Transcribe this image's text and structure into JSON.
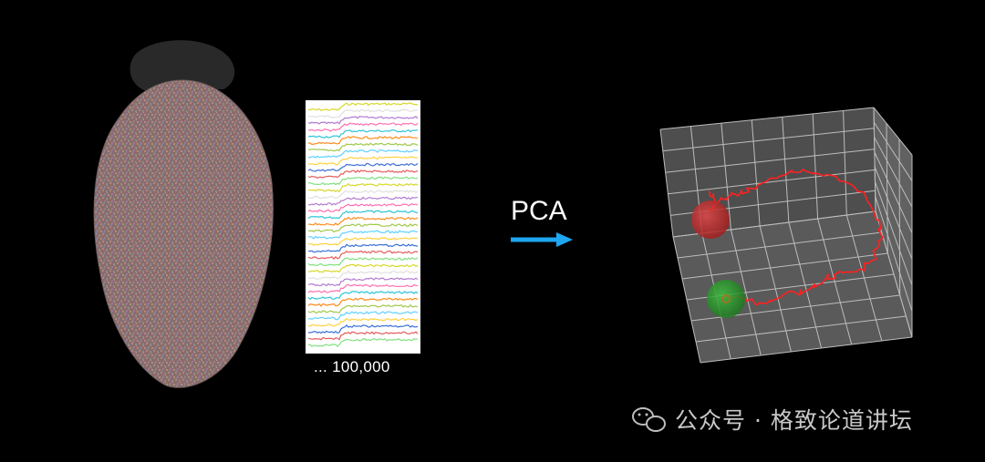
{
  "traces_panel": {
    "neuron_count_label": "... 100,000",
    "trace_colors": [
      "#d7d72a",
      "#e0e0e0",
      "#b07ad0",
      "#ff6fb0",
      "#2ec4d6",
      "#ff8c1a",
      "#a0c84a",
      "#5fd1ff",
      "#ffd23f",
      "#3a6fd8",
      "#e65b5b",
      "#7fe07f"
    ]
  },
  "arrow": {
    "label": "PCA",
    "color": "#1ea6f0"
  },
  "trajectory_plot": {
    "grid_color": "#bdbdbd",
    "panel_color": "#555555",
    "trajectory_color": "#ff2020",
    "start_marker_color": "#2a9a2a",
    "end_marker_color": "#cc2b2b"
  },
  "watermark": {
    "text": "公众号 · 格致论道讲坛"
  }
}
